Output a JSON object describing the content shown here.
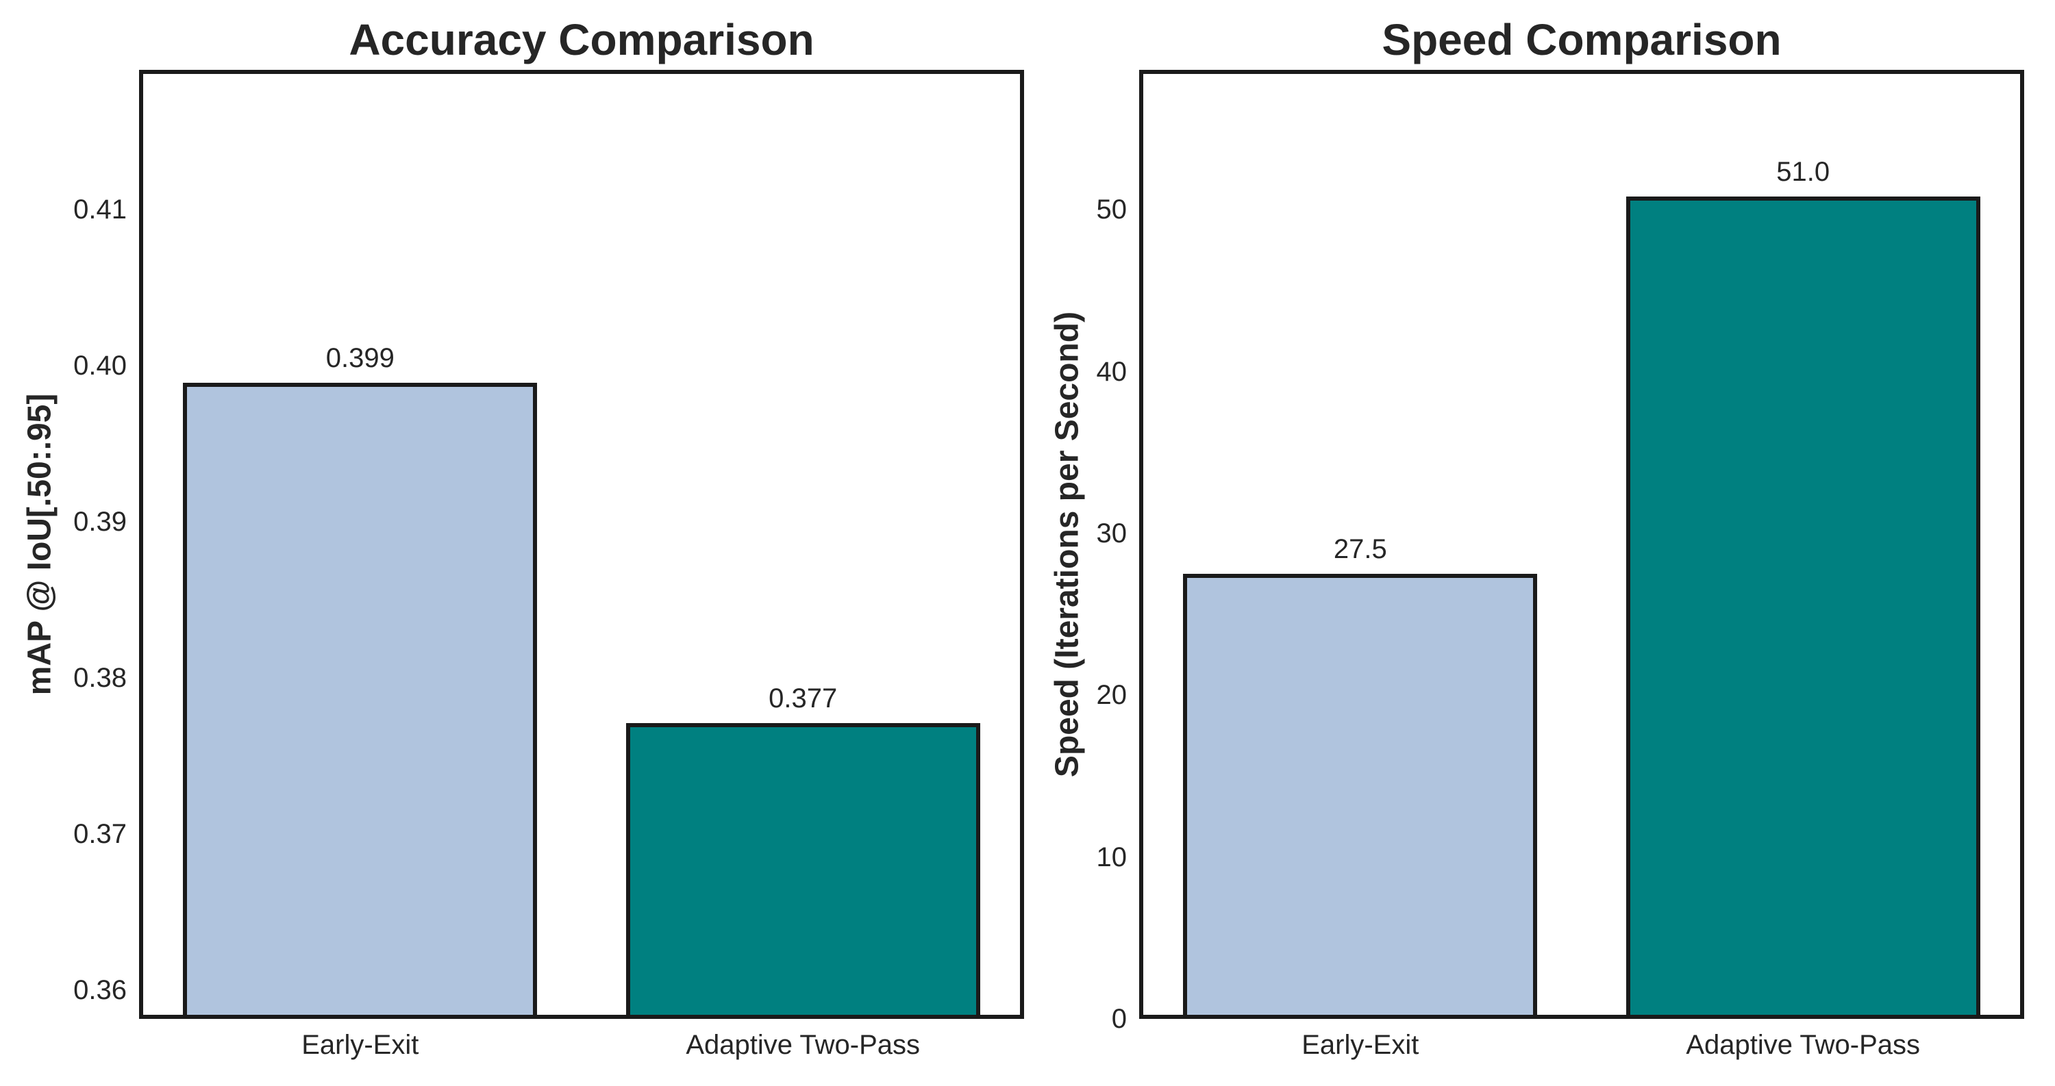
{
  "figure": {
    "background": "#ffffff"
  },
  "colors": {
    "bar_fill_early_exit": "#b0c4de",
    "bar_fill_adaptive_two_pass": "#008080",
    "bar_edge": "#1a1a1a",
    "spine": "#1a1a1a",
    "text": "#262626"
  },
  "chart_data": [
    {
      "type": "bar",
      "title": "Accuracy Comparison",
      "xlabel": "",
      "ylabel": "mAP @ IoU[.50:.95]",
      "categories": [
        "Early-Exit",
        "Adaptive Two-Pass"
      ],
      "values": [
        0.399,
        0.377
      ],
      "bar_labels": [
        "0.399",
        "0.377"
      ],
      "bar_colors": [
        "#b0c4de",
        "#008080"
      ],
      "ylim": [
        0.35815,
        0.41895
      ],
      "yticks": [
        0.36,
        0.37,
        0.38,
        0.39,
        0.4,
        0.41
      ],
      "ytick_labels": [
        "0.36",
        "0.37",
        "0.38",
        "0.39",
        "0.40",
        "0.41"
      ],
      "grid": false,
      "legend": null
    },
    {
      "type": "bar",
      "title": "Speed Comparison",
      "xlabel": "",
      "ylabel": "Speed (Iterations per Second)",
      "categories": [
        "Early-Exit",
        "Adaptive Two-Pass"
      ],
      "values": [
        27.5,
        51.0
      ],
      "bar_labels": [
        "27.5",
        "51.0"
      ],
      "bar_colors": [
        "#b0c4de",
        "#008080"
      ],
      "ylim": [
        0,
        58.65
      ],
      "yticks": [
        0,
        10,
        20,
        30,
        40,
        50
      ],
      "ytick_labels": [
        "0",
        "10",
        "20",
        "30",
        "40",
        "50"
      ],
      "grid": false,
      "legend": null
    }
  ]
}
